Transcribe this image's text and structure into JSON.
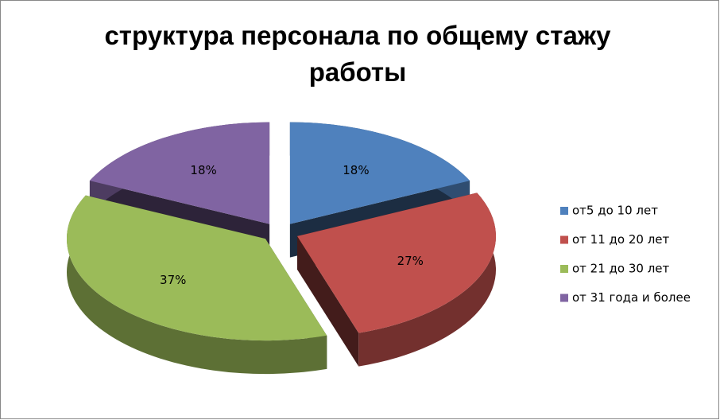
{
  "chart_data": {
    "type": "pie3d",
    "title": "структура персонала по общему стажу работы",
    "categories": [
      "от5 до 10 лет",
      "от 11 до 20 лет",
      "от 21 до 30 лет",
      "от 31 года и более"
    ],
    "values": [
      18,
      27,
      37,
      18
    ],
    "value_labels": [
      "18%",
      "27%",
      "37%",
      "18%"
    ],
    "colors": [
      "#4f81bd",
      "#c0504d",
      "#9bbb59",
      "#8064a2"
    ],
    "legend": "right"
  }
}
